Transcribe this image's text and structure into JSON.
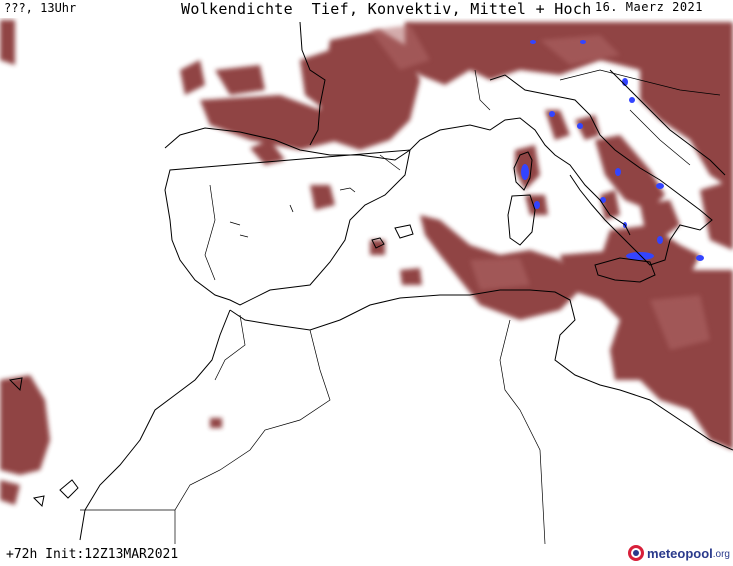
{
  "header": {
    "run_label": "???, 13Uhr",
    "title": "Wolkendichte  Tief, Konvektiv, Mittel + Hoch",
    "date": "16. Maerz 2021"
  },
  "footer": {
    "forecast_info": "+72h Init:12Z13MAR2021"
  },
  "brand": {
    "name": "meteopool",
    "tld": ".org",
    "icon": "meteopool-logo-icon"
  },
  "colors": {
    "cloud": "#8b3a3a",
    "cloud_light": "#b06868",
    "convective": "#3344ff",
    "coast": "#000000",
    "brand": "#2a3a8c"
  }
}
